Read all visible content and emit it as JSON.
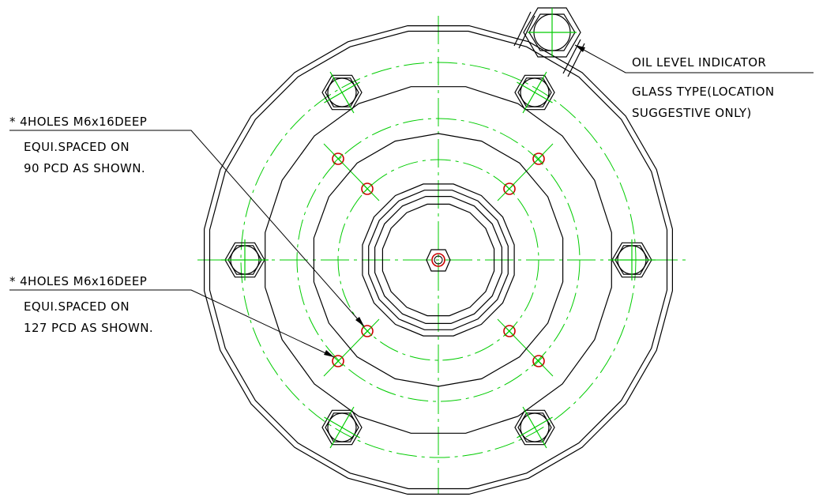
{
  "colors": {
    "outline": "#000000",
    "centerline": "#00cc00",
    "tapped_hole": "#cc0000",
    "background": "#ffffff"
  },
  "callouts": {
    "pcd90_holes": {
      "line1": "* 4HOLES M6x16DEEP",
      "line2": "EQUI.SPACED ON",
      "line3": "90 PCD AS SHOWN."
    },
    "pcd127_holes": {
      "line1": "* 4HOLES M6x16DEEP",
      "line2": "EQUI.SPACED ON",
      "line3": "127 PCD AS SHOWN."
    },
    "oil_level": {
      "line1": "OIL LEVEL INDICATOR",
      "line2": "GLASS TYPE(LOCATION",
      "line3": "SUGGESTIVE ONLY)"
    }
  },
  "features": {
    "hex_bolt_count": 6,
    "tapped_holes_90_pcd": 4,
    "tapped_holes_127_pcd": 4,
    "center_tapped_hole_count": 1
  }
}
